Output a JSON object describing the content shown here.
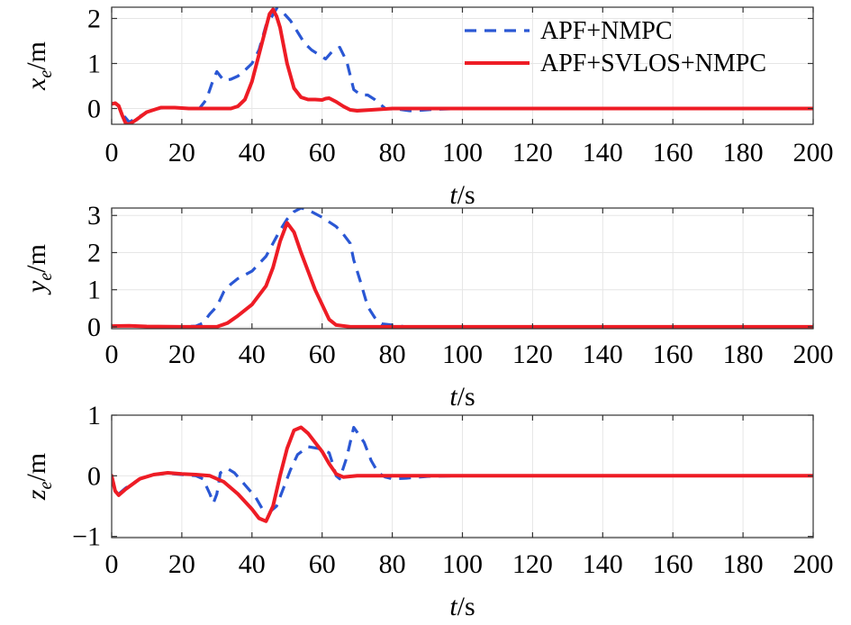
{
  "chart_data": [
    {
      "type": "line",
      "ylabel_main": "x",
      "ylabel_sub": "e",
      "ylabel_unit": "/m",
      "xlabel_main": "t",
      "xlabel_unit": "/s",
      "xlim": [
        0,
        200
      ],
      "ylim": [
        -0.35,
        2.25
      ],
      "xticks": [
        0,
        20,
        40,
        60,
        80,
        100,
        120,
        140,
        160,
        180,
        200
      ],
      "yticks": [
        0,
        1,
        2
      ],
      "ytick_labels": [
        "0",
        "1",
        "2"
      ],
      "grid": true,
      "legend": {
        "position": "top-right"
      },
      "series": [
        {
          "name": "APF+NMPC",
          "color": "#2a57d4",
          "style": "dashed",
          "points": [
            [
              0,
              0.1
            ],
            [
              1,
              0.12
            ],
            [
              2,
              0.05
            ],
            [
              3,
              -0.12
            ],
            [
              5,
              -0.3
            ],
            [
              7,
              -0.22
            ],
            [
              10,
              -0.08
            ],
            [
              14,
              0.01
            ],
            [
              18,
              0.02
            ],
            [
              22,
              0.0
            ],
            [
              25,
              0.0
            ],
            [
              27,
              0.2
            ],
            [
              29,
              0.65
            ],
            [
              30,
              0.82
            ],
            [
              32,
              0.62
            ],
            [
              34,
              0.65
            ],
            [
              36,
              0.72
            ],
            [
              38,
              0.85
            ],
            [
              40,
              1.0
            ],
            [
              42,
              1.3
            ],
            [
              44,
              1.85
            ],
            [
              45,
              1.95
            ],
            [
              47,
              2.22
            ],
            [
              49,
              2.12
            ],
            [
              51,
              1.95
            ],
            [
              53,
              1.7
            ],
            [
              55,
              1.45
            ],
            [
              57,
              1.3
            ],
            [
              59,
              1.2
            ],
            [
              61,
              1.1
            ],
            [
              63,
              1.28
            ],
            [
              65,
              1.36
            ],
            [
              67,
              1.05
            ],
            [
              69,
              0.42
            ],
            [
              71,
              0.3
            ],
            [
              73,
              0.3
            ],
            [
              75,
              0.2
            ],
            [
              78,
              0.0
            ],
            [
              82,
              -0.02
            ],
            [
              85,
              -0.05
            ],
            [
              88,
              -0.04
            ],
            [
              92,
              -0.02
            ],
            [
              100,
              0.0
            ],
            [
              120,
              0.0
            ],
            [
              150,
              0.0
            ],
            [
              200,
              0.0
            ]
          ]
        },
        {
          "name": "APF+SVLOS+NMPC",
          "color": "#ee1c25",
          "style": "solid",
          "points": [
            [
              0,
              0.1
            ],
            [
              1,
              0.12
            ],
            [
              2,
              0.06
            ],
            [
              3,
              -0.15
            ],
            [
              4,
              -0.33
            ],
            [
              5,
              -0.35
            ],
            [
              7,
              -0.25
            ],
            [
              10,
              -0.08
            ],
            [
              14,
              0.02
            ],
            [
              18,
              0.02
            ],
            [
              22,
              0.0
            ],
            [
              30,
              0.0
            ],
            [
              34,
              0.0
            ],
            [
              36,
              0.05
            ],
            [
              38,
              0.2
            ],
            [
              40,
              0.6
            ],
            [
              42,
              1.2
            ],
            [
              44,
              1.8
            ],
            [
              45,
              2.1
            ],
            [
              46,
              2.2
            ],
            [
              47,
              2.05
            ],
            [
              48,
              1.8
            ],
            [
              50,
              1.0
            ],
            [
              52,
              0.45
            ],
            [
              54,
              0.25
            ],
            [
              56,
              0.2
            ],
            [
              58,
              0.2
            ],
            [
              60,
              0.19
            ],
            [
              61,
              0.22
            ],
            [
              62,
              0.23
            ],
            [
              64,
              0.15
            ],
            [
              66,
              0.05
            ],
            [
              68,
              -0.03
            ],
            [
              70,
              -0.05
            ],
            [
              74,
              -0.03
            ],
            [
              80,
              0.0
            ],
            [
              100,
              0.0
            ],
            [
              150,
              0.0
            ],
            [
              200,
              0.0
            ]
          ]
        }
      ]
    },
    {
      "type": "line",
      "ylabel_main": "y",
      "ylabel_sub": "e",
      "ylabel_unit": "/m",
      "xlabel_main": "t",
      "xlabel_unit": "/s",
      "xlim": [
        0,
        200
      ],
      "ylim": [
        -0.05,
        3.2
      ],
      "xticks": [
        0,
        20,
        40,
        60,
        80,
        100,
        120,
        140,
        160,
        180,
        200
      ],
      "yticks": [
        0,
        1,
        2,
        3
      ],
      "ytick_labels": [
        "0",
        "1",
        "2",
        "3"
      ],
      "grid": true,
      "series": [
        {
          "name": "APF+NMPC",
          "color": "#2a57d4",
          "style": "dashed",
          "points": [
            [
              0,
              0.02
            ],
            [
              5,
              0.03
            ],
            [
              10,
              0.01
            ],
            [
              20,
              0.0
            ],
            [
              24,
              0.02
            ],
            [
              26,
              0.1
            ],
            [
              28,
              0.35
            ],
            [
              30,
              0.55
            ],
            [
              32,
              0.95
            ],
            [
              34,
              1.15
            ],
            [
              36,
              1.3
            ],
            [
              40,
              1.5
            ],
            [
              44,
              1.9
            ],
            [
              48,
              2.6
            ],
            [
              50,
              2.9
            ],
            [
              52,
              3.1
            ],
            [
              54,
              3.2
            ],
            [
              56,
              3.15
            ],
            [
              60,
              2.95
            ],
            [
              64,
              2.7
            ],
            [
              66,
              2.5
            ],
            [
              68,
              2.25
            ],
            [
              69,
              1.8
            ],
            [
              71,
              1.2
            ],
            [
              73,
              0.55
            ],
            [
              75,
              0.25
            ],
            [
              77,
              0.08
            ],
            [
              80,
              0.05
            ],
            [
              84,
              0.0
            ],
            [
              90,
              0.0
            ],
            [
              200,
              0.0
            ]
          ]
        },
        {
          "name": "APF+SVLOS+NMPC",
          "color": "#ee1c25",
          "style": "solid",
          "points": [
            [
              0,
              0.02
            ],
            [
              5,
              0.03
            ],
            [
              10,
              0.01
            ],
            [
              20,
              0.0
            ],
            [
              30,
              0.0
            ],
            [
              33,
              0.1
            ],
            [
              36,
              0.3
            ],
            [
              40,
              0.6
            ],
            [
              44,
              1.1
            ],
            [
              46,
              1.6
            ],
            [
              48,
              2.3
            ],
            [
              50,
              2.8
            ],
            [
              52,
              2.55
            ],
            [
              54,
              2.0
            ],
            [
              56,
              1.5
            ],
            [
              58,
              1.0
            ],
            [
              60,
              0.6
            ],
            [
              62,
              0.2
            ],
            [
              64,
              0.05
            ],
            [
              68,
              0.0
            ],
            [
              80,
              0.0
            ],
            [
              200,
              0.0
            ]
          ]
        }
      ]
    },
    {
      "type": "line",
      "ylabel_main": "z",
      "ylabel_sub": "e",
      "ylabel_unit": "/m",
      "xlabel_main": "t",
      "xlabel_unit": "/s",
      "xlim": [
        0,
        200
      ],
      "ylim": [
        -1.02,
        1.0
      ],
      "xticks": [
        0,
        20,
        40,
        60,
        80,
        100,
        120,
        140,
        160,
        180,
        200
      ],
      "yticks": [
        -1,
        0,
        1
      ],
      "ytick_labels": [
        "−1",
        "0",
        "1"
      ],
      "grid": true,
      "series": [
        {
          "name": "APF+NMPC",
          "color": "#2a57d4",
          "style": "dashed",
          "points": [
            [
              0,
              0.0
            ],
            [
              1,
              -0.25
            ],
            [
              2,
              -0.3
            ],
            [
              4,
              -0.2
            ],
            [
              8,
              -0.05
            ],
            [
              12,
              0.02
            ],
            [
              16,
              0.04
            ],
            [
              20,
              0.02
            ],
            [
              24,
              0.0
            ],
            [
              26,
              -0.05
            ],
            [
              28,
              -0.3
            ],
            [
              29,
              -0.45
            ],
            [
              30,
              -0.3
            ],
            [
              31,
              0.05
            ],
            [
              33,
              0.12
            ],
            [
              35,
              0.05
            ],
            [
              38,
              -0.15
            ],
            [
              41,
              -0.35
            ],
            [
              43,
              -0.55
            ],
            [
              45,
              -0.6
            ],
            [
              47,
              -0.5
            ],
            [
              49,
              -0.2
            ],
            [
              51,
              0.1
            ],
            [
              53,
              0.35
            ],
            [
              56,
              0.48
            ],
            [
              59,
              0.45
            ],
            [
              62,
              0.38
            ],
            [
              63,
              0.2
            ],
            [
              64,
              0.0
            ],
            [
              65,
              -0.05
            ],
            [
              67,
              0.3
            ],
            [
              69,
              0.8
            ],
            [
              70,
              0.72
            ],
            [
              72,
              0.55
            ],
            [
              74,
              0.25
            ],
            [
              76,
              0.05
            ],
            [
              78,
              -0.02
            ],
            [
              80,
              -0.05
            ],
            [
              84,
              -0.04
            ],
            [
              90,
              -0.01
            ],
            [
              100,
              0.0
            ],
            [
              200,
              0.0
            ]
          ]
        },
        {
          "name": "APF+SVLOS+NMPC",
          "color": "#ee1c25",
          "style": "solid",
          "points": [
            [
              0,
              0.0
            ],
            [
              1,
              -0.25
            ],
            [
              2,
              -0.32
            ],
            [
              4,
              -0.22
            ],
            [
              8,
              -0.05
            ],
            [
              12,
              0.02
            ],
            [
              16,
              0.05
            ],
            [
              20,
              0.03
            ],
            [
              24,
              0.02
            ],
            [
              28,
              0.0
            ],
            [
              32,
              -0.1
            ],
            [
              36,
              -0.3
            ],
            [
              40,
              -0.55
            ],
            [
              42,
              -0.7
            ],
            [
              44,
              -0.75
            ],
            [
              46,
              -0.5
            ],
            [
              48,
              0.0
            ],
            [
              50,
              0.45
            ],
            [
              52,
              0.75
            ],
            [
              54,
              0.8
            ],
            [
              56,
              0.7
            ],
            [
              58,
              0.55
            ],
            [
              60,
              0.4
            ],
            [
              62,
              0.2
            ],
            [
              64,
              0.03
            ],
            [
              66,
              -0.02
            ],
            [
              70,
              0.0
            ],
            [
              80,
              0.0
            ],
            [
              200,
              0.0
            ]
          ]
        }
      ]
    }
  ]
}
